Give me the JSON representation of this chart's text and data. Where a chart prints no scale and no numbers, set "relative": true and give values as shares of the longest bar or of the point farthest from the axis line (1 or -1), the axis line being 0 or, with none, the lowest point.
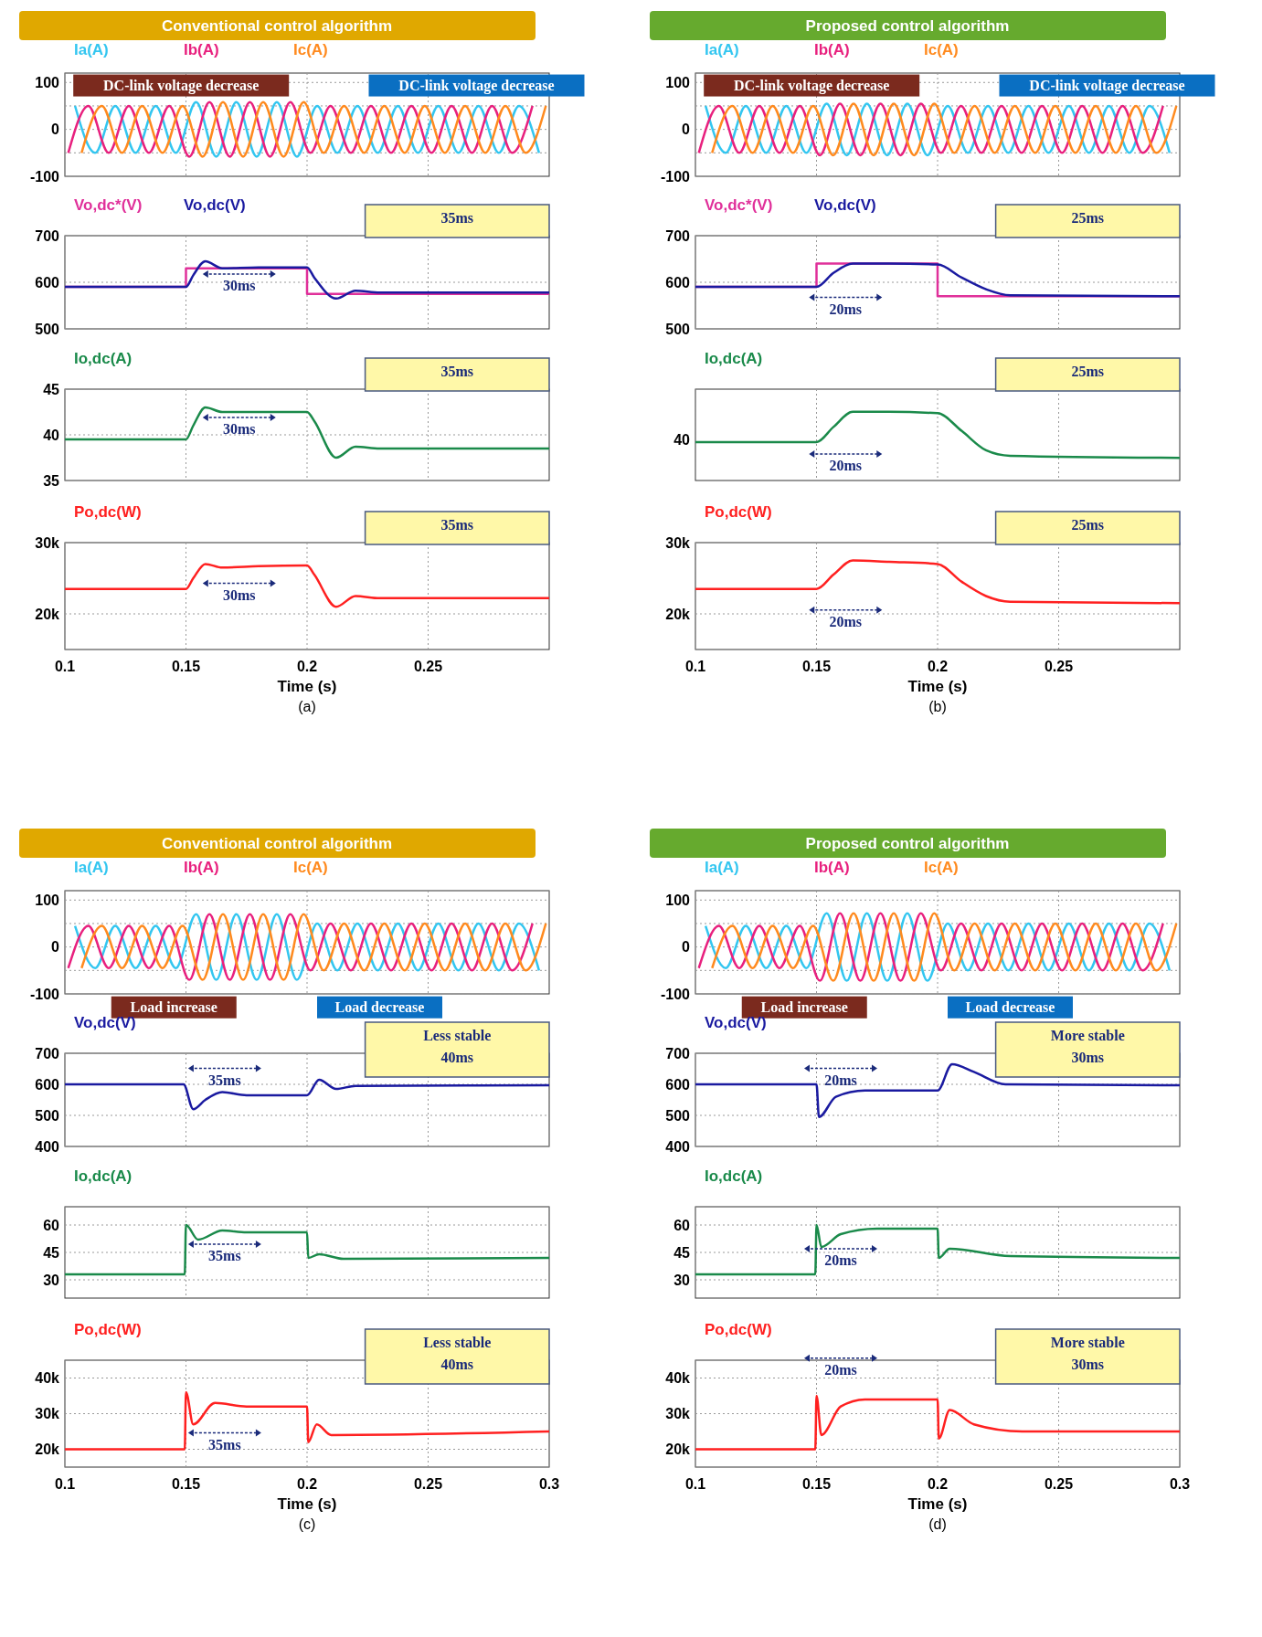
{
  "chart_data": [
    {
      "type": "line",
      "title": "Conventional control  algorithm",
      "xlim": [
        0.1,
        0.3
      ],
      "xticks": [
        0.1,
        0.15,
        0.2,
        0.25
      ],
      "ylim": [
        -100,
        120
      ],
      "yticks": [
        -100,
        {
          "value": -50,
          "label": null
        },
        0,
        {
          "value": 50,
          "label": null
        },
        100
      ],
      "grid": true,
      "legend": "top left",
      "tick_labels": "y",
      "series": [
        {
          "name": "Ia(A)",
          "color": "#33c6f0",
          "x": [
            0.1042,
            0.1125,
            0.1208,
            0.1292,
            0.1375,
            0.1458,
            0.1542,
            0.1625,
            0.1708,
            0.1792,
            0.1875,
            0.1958,
            0.2042,
            0.2125,
            0.2208,
            0.2292,
            0.2375,
            0.2458,
            0.2542,
            0.2625,
            0.2708,
            0.2792,
            0.2875,
            0.2958
          ],
          "values": [
            50,
            -50,
            50,
            -50,
            50,
            -50,
            58,
            -58,
            58,
            -58,
            58,
            -58,
            50,
            -50,
            50,
            -50,
            50,
            -50,
            50,
            -50,
            50,
            -50,
            50,
            -50
          ]
        },
        {
          "name": "Ib(A)",
          "color": "#e8207e",
          "x": [
            0.1014,
            0.1097,
            0.1181,
            0.1264,
            0.1347,
            0.1431,
            0.1514,
            0.1597,
            0.1681,
            0.1764,
            0.1847,
            0.1931,
            0.2014,
            0.2097,
            0.2181,
            0.2264,
            0.2347,
            0.2431,
            0.2514,
            0.2597,
            0.2681,
            0.2764,
            0.2847,
            0.2931
          ],
          "values": [
            -50,
            50,
            -50,
            50,
            -50,
            50,
            -58,
            58,
            -58,
            58,
            -58,
            58,
            -50,
            50,
            -50,
            50,
            -50,
            50,
            -50,
            50,
            -50,
            50,
            -50,
            50
          ]
        },
        {
          "name": "Ic(A)",
          "color": "#ff8a1e",
          "x": [
            0.1069,
            0.1153,
            0.1236,
            0.1319,
            0.1403,
            0.1486,
            0.1569,
            0.1653,
            0.1736,
            0.1819,
            0.1903,
            0.1986,
            0.2069,
            0.2153,
            0.2236,
            0.2319,
            0.2403,
            0.2486,
            0.2569,
            0.2653,
            0.2736,
            0.2819,
            0.2903,
            0.2986
          ],
          "values": [
            -50,
            50,
            -50,
            50,
            -50,
            50,
            -58,
            58,
            -58,
            58,
            -58,
            58,
            -50,
            50,
            -50,
            50,
            -50,
            50,
            -50,
            50,
            -50,
            50,
            -50,
            50
          ]
        }
      ],
      "annotations": [
        "DC-link voltage decrease",
        "DC-link voltage decrease"
      ]
    },
    {
      "type": "line",
      "xlim": [
        0.1,
        0.3
      ],
      "xticks": [
        0.1,
        0.15,
        0.2,
        0.25
      ],
      "ylim": [
        500,
        700
      ],
      "yticks": [
        500,
        600,
        700
      ],
      "grid": true,
      "legend": "top left",
      "tick_labels": "y",
      "series": [
        {
          "name": "Vo,dc*(V)",
          "type": "step",
          "color": "#e0309a",
          "x": [
            0.1,
            0.15,
            0.2,
            0.3
          ],
          "values": [
            590,
            630,
            575,
            575
          ]
        },
        {
          "name": "Vo,dc(V)",
          "color": "#1a1aa0",
          "x": [
            0.1,
            0.15,
            0.153,
            0.158,
            0.165,
            0.18,
            0.2,
            0.203,
            0.212,
            0.22,
            0.23,
            0.3
          ],
          "values": [
            590,
            590,
            615,
            645,
            630,
            632,
            632,
            610,
            565,
            582,
            578,
            578
          ]
        }
      ],
      "annotations": [
        "30ms",
        "35ms"
      ]
    },
    {
      "type": "line",
      "xlim": [
        0.1,
        0.3
      ],
      "xticks": [
        0.1,
        0.15,
        0.2,
        0.25
      ],
      "ylim": [
        35,
        45
      ],
      "yticks": [
        35,
        40,
        45
      ],
      "grid": true,
      "legend": "top left",
      "tick_labels": "y",
      "series": [
        {
          "name": "Io,dc(A)",
          "color": "#1a8a4a",
          "x": [
            0.1,
            0.15,
            0.153,
            0.158,
            0.165,
            0.18,
            0.2,
            0.203,
            0.212,
            0.22,
            0.23,
            0.3
          ],
          "values": [
            39.5,
            39.5,
            41,
            43,
            42.5,
            42.5,
            42.5,
            41.5,
            37.5,
            38.7,
            38.5,
            38.5
          ]
        }
      ],
      "annotations": [
        "30ms",
        "35ms"
      ]
    },
    {
      "type": "line",
      "xlim": [
        0.1,
        0.3
      ],
      "xticks": [
        0.1,
        0.15,
        0.2,
        0.25
      ],
      "ylim": [
        15000,
        30000
      ],
      "yticks": [
        {
          "value": 20000,
          "label": "20k"
        },
        {
          "value": 30000,
          "label": "30k"
        }
      ],
      "grid": true,
      "legend": "top left",
      "xlabel": "Time (s)",
      "subtitle": "(a)",
      "series": [
        {
          "name": "Po,dc(W)",
          "color": "#ff2020",
          "x": [
            0.1,
            0.15,
            0.153,
            0.158,
            0.165,
            0.18,
            0.2,
            0.203,
            0.212,
            0.22,
            0.23,
            0.3
          ],
          "values": [
            23500,
            23500,
            25000,
            27000,
            26500,
            26700,
            26800,
            25500,
            21000,
            22500,
            22200,
            22200
          ]
        }
      ],
      "annotations": [
        "30ms",
        "35ms"
      ]
    },
    {
      "type": "line",
      "title": "Proposed control  algorithm",
      "xlim": [
        0.1,
        0.3
      ],
      "xticks": [
        0.1,
        0.15,
        0.2,
        0.25
      ],
      "ylim": [
        -100,
        120
      ],
      "yticks": [
        -100,
        {
          "value": -50,
          "label": null
        },
        0,
        {
          "value": 50,
          "label": null
        },
        100
      ],
      "grid": true,
      "legend": "top left",
      "tick_labels": "y",
      "series": [
        {
          "name": "Ia(A)",
          "color": "#33c6f0",
          "x": [
            0.1042,
            0.1125,
            0.1208,
            0.1292,
            0.1375,
            0.1458,
            0.1542,
            0.1625,
            0.1708,
            0.1792,
            0.1875,
            0.1958,
            0.2042,
            0.2125,
            0.2208,
            0.2292,
            0.2375,
            0.2458,
            0.2542,
            0.2625,
            0.2708,
            0.2792,
            0.2875,
            0.2958
          ],
          "values": [
            50,
            -50,
            50,
            -50,
            50,
            -50,
            55,
            -55,
            55,
            -55,
            55,
            -55,
            50,
            -50,
            50,
            -50,
            50,
            -50,
            50,
            -50,
            50,
            -50,
            50,
            -50
          ]
        },
        {
          "name": "Ib(A)",
          "color": "#e8207e",
          "x": [
            0.1014,
            0.1097,
            0.1181,
            0.1264,
            0.1347,
            0.1431,
            0.1514,
            0.1597,
            0.1681,
            0.1764,
            0.1847,
            0.1931,
            0.2014,
            0.2097,
            0.2181,
            0.2264,
            0.2347,
            0.2431,
            0.2514,
            0.2597,
            0.2681,
            0.2764,
            0.2847,
            0.2931
          ],
          "values": [
            -50,
            50,
            -50,
            50,
            -50,
            50,
            -55,
            55,
            -55,
            55,
            -55,
            55,
            -50,
            50,
            -50,
            50,
            -50,
            50,
            -50,
            50,
            -50,
            50,
            -50,
            50
          ]
        },
        {
          "name": "Ic(A)",
          "color": "#ff8a1e",
          "x": [
            0.1069,
            0.1153,
            0.1236,
            0.1319,
            0.1403,
            0.1486,
            0.1569,
            0.1653,
            0.1736,
            0.1819,
            0.1903,
            0.1986,
            0.2069,
            0.2153,
            0.2236,
            0.2319,
            0.2403,
            0.2486,
            0.2569,
            0.2653,
            0.2736,
            0.2819,
            0.2903,
            0.2986
          ],
          "values": [
            -50,
            50,
            -50,
            50,
            -50,
            50,
            -55,
            55,
            -55,
            55,
            -55,
            55,
            -50,
            50,
            -50,
            50,
            -50,
            50,
            -50,
            50,
            -50,
            50,
            -50,
            50
          ]
        }
      ],
      "annotations": [
        "DC-link voltage decrease",
        "DC-link voltage decrease"
      ]
    },
    {
      "type": "line",
      "xlim": [
        0.1,
        0.3
      ],
      "xticks": [
        0.1,
        0.15,
        0.2,
        0.25
      ],
      "ylim": [
        500,
        700
      ],
      "yticks": [
        500,
        600,
        700
      ],
      "grid": true,
      "legend": "top left",
      "tick_labels": "y",
      "series": [
        {
          "name": "Vo,dc*(V)",
          "type": "step",
          "color": "#e0309a",
          "x": [
            0.1,
            0.15,
            0.2,
            0.3
          ],
          "values": [
            590,
            640,
            570,
            570
          ]
        },
        {
          "name": "Vo,dc(V)",
          "color": "#1a1aa0",
          "x": [
            0.1,
            0.15,
            0.157,
            0.165,
            0.18,
            0.2,
            0.21,
            0.22,
            0.23,
            0.3
          ],
          "values": [
            590,
            590,
            620,
            640,
            640,
            638,
            610,
            585,
            572,
            570
          ]
        }
      ],
      "annotations": [
        "20ms",
        "25ms"
      ]
    },
    {
      "type": "line",
      "relative": true,
      "xlim": [
        0.1,
        0.3
      ],
      "xticks": [
        0.1,
        0.15,
        0.2,
        0.25
      ],
      "grid": true,
      "legend": "top left",
      "tick_labels": false,
      "series": [
        {
          "name": "Io,dc(A)",
          "color": "#1a8a4a",
          "x": [
            0.1,
            0.15,
            0.157,
            0.165,
            0.18,
            0.2,
            0.21,
            0.22,
            0.23,
            0.3
          ],
          "values": [
            0.56,
            0.56,
            0.78,
            1,
            1,
            0.98,
            0.72,
            0.44,
            0.36,
            0.33
          ]
        }
      ],
      "annotations": [
        "40",
        "20ms",
        "25ms"
      ]
    },
    {
      "type": "line",
      "xlim": [
        0.1,
        0.3
      ],
      "xticks": [
        0.1,
        0.15,
        0.2,
        0.25
      ],
      "ylim": [
        15000,
        30000
      ],
      "yticks": [
        {
          "value": 20000,
          "label": "20k"
        },
        {
          "value": 30000,
          "label": "30k"
        }
      ],
      "grid": true,
      "legend": "top left",
      "xlabel": "Time (s)",
      "subtitle": "(b)",
      "series": [
        {
          "name": "Po,dc(W)",
          "color": "#ff2020",
          "x": [
            0.1,
            0.15,
            0.157,
            0.165,
            0.18,
            0.2,
            0.21,
            0.22,
            0.23,
            0.3
          ],
          "values": [
            23500,
            23500,
            25500,
            27500,
            27300,
            27000,
            24500,
            22500,
            21700,
            21500
          ]
        }
      ],
      "annotations": [
        "20ms",
        "25ms"
      ]
    },
    {
      "type": "line",
      "title": "Conventional control  algorithm",
      "xlim": [
        0.1,
        0.3
      ],
      "xticks": [
        0.1,
        0.15,
        0.2,
        0.25,
        0.3
      ],
      "ylim": [
        -100,
        120
      ],
      "yticks": [
        -100,
        {
          "value": -50,
          "label": null
        },
        0,
        {
          "value": 50,
          "label": null
        },
        100
      ],
      "grid": true,
      "legend": "top left",
      "tick_labels": "y",
      "series": [
        {
          "name": "Ia(A)",
          "color": "#33c6f0",
          "x": [
            0.1042,
            0.1125,
            0.1208,
            0.1292,
            0.1375,
            0.1458,
            0.1542,
            0.1625,
            0.1708,
            0.1792,
            0.1875,
            0.1958,
            0.2042,
            0.2125,
            0.2208,
            0.2292,
            0.2375,
            0.2458,
            0.2542,
            0.2625,
            0.2708,
            0.2792,
            0.2875,
            0.2958
          ],
          "values": [
            45,
            -45,
            45,
            -45,
            45,
            -45,
            70,
            -70,
            70,
            -70,
            70,
            -70,
            50,
            -50,
            50,
            -50,
            50,
            -50,
            50,
            -50,
            50,
            -50,
            50,
            -50
          ]
        },
        {
          "name": "Ib(A)",
          "color": "#e8207e",
          "x": [
            0.1014,
            0.1097,
            0.1181,
            0.1264,
            0.1347,
            0.1431,
            0.1514,
            0.1597,
            0.1681,
            0.1764,
            0.1847,
            0.1931,
            0.2014,
            0.2097,
            0.2181,
            0.2264,
            0.2347,
            0.2431,
            0.2514,
            0.2597,
            0.2681,
            0.2764,
            0.2847,
            0.2931
          ],
          "values": [
            -45,
            45,
            -45,
            45,
            -45,
            45,
            -70,
            70,
            -70,
            70,
            -70,
            70,
            -50,
            50,
            -50,
            50,
            -50,
            50,
            -50,
            50,
            -50,
            50,
            -50,
            50
          ]
        },
        {
          "name": "Ic(A)",
          "color": "#ff8a1e",
          "x": [
            0.1069,
            0.1153,
            0.1236,
            0.1319,
            0.1403,
            0.1486,
            0.1569,
            0.1653,
            0.1736,
            0.1819,
            0.1903,
            0.1986,
            0.2069,
            0.2153,
            0.2236,
            0.2319,
            0.2403,
            0.2486,
            0.2569,
            0.2653,
            0.2736,
            0.2819,
            0.2903,
            0.2986
          ],
          "values": [
            -45,
            45,
            -45,
            45,
            -45,
            45,
            -70,
            70,
            -70,
            70,
            -70,
            70,
            -50,
            50,
            -50,
            50,
            -50,
            50,
            -50,
            50,
            -50,
            50,
            -50,
            50
          ]
        }
      ],
      "annotations": [
        "Load increase",
        "Load decrease"
      ]
    },
    {
      "type": "line",
      "xlim": [
        0.1,
        0.3
      ],
      "xticks": [
        0.1,
        0.15,
        0.2,
        0.25,
        0.3
      ],
      "ylim": [
        400,
        700
      ],
      "yticks": [
        400,
        500,
        600,
        700
      ],
      "grid": true,
      "legend": "top left",
      "tick_labels": "y",
      "series": [
        {
          "name": "Vo,dc(V)",
          "color": "#1a1aa0",
          "x": [
            0.1,
            0.149,
            0.153,
            0.158,
            0.165,
            0.175,
            0.2,
            0.205,
            0.212,
            0.22,
            0.3
          ],
          "values": [
            600,
            600,
            520,
            550,
            575,
            565,
            565,
            615,
            585,
            595,
            597
          ]
        }
      ],
      "annotations": [
        "35ms",
        "Less stable",
        "40ms"
      ]
    },
    {
      "type": "line",
      "xlim": [
        0.1,
        0.3
      ],
      "xticks": [
        0.1,
        0.15,
        0.2,
        0.25,
        0.3
      ],
      "ylim": [
        20,
        70
      ],
      "yticks": [
        30,
        45,
        60
      ],
      "grid": true,
      "legend": "top left",
      "tick_labels": "y",
      "series": [
        {
          "name": "Io,dc(A)",
          "color": "#1a8a4a",
          "x": [
            0.1,
            0.1495,
            0.15,
            0.155,
            0.165,
            0.175,
            0.2,
            0.2005,
            0.205,
            0.215,
            0.3
          ],
          "values": [
            33,
            33,
            60,
            52,
            57,
            56,
            56,
            42,
            44,
            41.5,
            42
          ]
        }
      ],
      "annotations": [
        "35ms"
      ]
    },
    {
      "type": "line",
      "xlim": [
        0.1,
        0.3
      ],
      "xticks": [
        0.1,
        0.15,
        0.2,
        0.25,
        0.3
      ],
      "ylim": [
        15000,
        45000
      ],
      "yticks": [
        {
          "value": 20000,
          "label": "20k"
        },
        {
          "value": 30000,
          "label": "30k"
        },
        {
          "value": 40000,
          "label": "40k"
        }
      ],
      "grid": true,
      "legend": "top left",
      "xlabel": "Time (s)",
      "subtitle": "(c)",
      "series": [
        {
          "name": "Po,dc(W)",
          "color": "#ff2020",
          "x": [
            0.1,
            0.1495,
            0.15,
            0.153,
            0.162,
            0.175,
            0.2,
            0.2005,
            0.204,
            0.21,
            0.3
          ],
          "values": [
            20000,
            20000,
            36000,
            27000,
            33000,
            32000,
            32000,
            22000,
            27000,
            24000,
            25000
          ]
        }
      ],
      "annotations": [
        "35ms",
        "Less stable",
        "40ms"
      ]
    },
    {
      "type": "line",
      "title": "Proposed control  algorithm",
      "xlim": [
        0.1,
        0.3
      ],
      "xticks": [
        0.1,
        0.15,
        0.2,
        0.25,
        0.3
      ],
      "ylim": [
        -100,
        120
      ],
      "yticks": [
        -100,
        {
          "value": -50,
          "label": null
        },
        0,
        {
          "value": 50,
          "label": null
        },
        100
      ],
      "grid": true,
      "legend": "top left",
      "tick_labels": "y",
      "series": [
        {
          "name": "Ia(A)",
          "color": "#33c6f0",
          "x": [
            0.1042,
            0.1125,
            0.1208,
            0.1292,
            0.1375,
            0.1458,
            0.1542,
            0.1625,
            0.1708,
            0.1792,
            0.1875,
            0.1958,
            0.2042,
            0.2125,
            0.2208,
            0.2292,
            0.2375,
            0.2458,
            0.2542,
            0.2625,
            0.2708,
            0.2792,
            0.2875,
            0.2958
          ],
          "values": [
            45,
            -45,
            45,
            -45,
            45,
            -45,
            72,
            -72,
            72,
            -72,
            72,
            -72,
            50,
            -50,
            50,
            -50,
            50,
            -50,
            50,
            -50,
            50,
            -50,
            50,
            -50
          ]
        },
        {
          "name": "Ib(A)",
          "color": "#e8207e",
          "x": [
            0.1014,
            0.1097,
            0.1181,
            0.1264,
            0.1347,
            0.1431,
            0.1514,
            0.1597,
            0.1681,
            0.1764,
            0.1847,
            0.1931,
            0.2014,
            0.2097,
            0.2181,
            0.2264,
            0.2347,
            0.2431,
            0.2514,
            0.2597,
            0.2681,
            0.2764,
            0.2847,
            0.2931
          ],
          "values": [
            -45,
            45,
            -45,
            45,
            -45,
            45,
            -72,
            72,
            -72,
            72,
            -72,
            72,
            -50,
            50,
            -50,
            50,
            -50,
            50,
            -50,
            50,
            -50,
            50,
            -50,
            50
          ]
        },
        {
          "name": "Ic(A)",
          "color": "#ff8a1e",
          "x": [
            0.1069,
            0.1153,
            0.1236,
            0.1319,
            0.1403,
            0.1486,
            0.1569,
            0.1653,
            0.1736,
            0.1819,
            0.1903,
            0.1986,
            0.2069,
            0.2153,
            0.2236,
            0.2319,
            0.2403,
            0.2486,
            0.2569,
            0.2653,
            0.2736,
            0.2819,
            0.2903,
            0.2986
          ],
          "values": [
            -45,
            45,
            -45,
            45,
            -45,
            45,
            -72,
            72,
            -72,
            72,
            -72,
            72,
            -50,
            50,
            -50,
            50,
            -50,
            50,
            -50,
            50,
            -50,
            50,
            -50,
            50
          ]
        }
      ],
      "annotations": [
        "Load increase",
        "Load decrease"
      ]
    },
    {
      "type": "line",
      "xlim": [
        0.1,
        0.3
      ],
      "xticks": [
        0.1,
        0.15,
        0.2,
        0.25,
        0.3
      ],
      "ylim": [
        400,
        700
      ],
      "yticks": [
        400,
        500,
        600,
        700
      ],
      "grid": true,
      "legend": "top left",
      "tick_labels": "y",
      "series": [
        {
          "name": "Vo,dc(V)",
          "color": "#1a1aa0",
          "x": [
            0.1,
            0.15,
            0.151,
            0.158,
            0.17,
            0.2,
            0.206,
            0.215,
            0.228,
            0.3
          ],
          "values": [
            600,
            600,
            495,
            560,
            580,
            580,
            665,
            640,
            600,
            597
          ]
        }
      ],
      "annotations": [
        "20ms",
        "More stable",
        "30ms"
      ]
    },
    {
      "type": "line",
      "xlim": [
        0.1,
        0.3
      ],
      "xticks": [
        0.1,
        0.15,
        0.2,
        0.25,
        0.3
      ],
      "ylim": [
        20,
        70
      ],
      "yticks": [
        30,
        45,
        60
      ],
      "grid": true,
      "legend": "top left",
      "tick_labels": "y",
      "series": [
        {
          "name": "Io,dc(A)",
          "color": "#1a8a4a",
          "x": [
            0.1,
            0.1495,
            0.15,
            0.152,
            0.16,
            0.175,
            0.2,
            0.2005,
            0.205,
            0.23,
            0.3
          ],
          "values": [
            33,
            33,
            60,
            48,
            55,
            58,
            58,
            42,
            47,
            43,
            42
          ]
        }
      ],
      "annotations": [
        "20ms"
      ]
    },
    {
      "type": "line",
      "xlim": [
        0.1,
        0.3
      ],
      "xticks": [
        0.1,
        0.15,
        0.2,
        0.25,
        0.3
      ],
      "ylim": [
        15000,
        45000
      ],
      "yticks": [
        {
          "value": 20000,
          "label": "20k"
        },
        {
          "value": 30000,
          "label": "30k"
        },
        {
          "value": 40000,
          "label": "40k"
        }
      ],
      "grid": true,
      "legend": "top left",
      "xlabel": "Time (s)",
      "subtitle": "(d)",
      "series": [
        {
          "name": "Po,dc(W)",
          "color": "#ff2020",
          "x": [
            0.1,
            0.1495,
            0.15,
            0.152,
            0.16,
            0.17,
            0.2,
            0.2005,
            0.205,
            0.215,
            0.235,
            0.3
          ],
          "values": [
            20000,
            20000,
            35000,
            24000,
            32000,
            34000,
            34000,
            23000,
            31000,
            27000,
            25000,
            25000
          ]
        }
      ],
      "annotations": [
        "20ms",
        "More stable",
        "30ms"
      ]
    }
  ]
}
